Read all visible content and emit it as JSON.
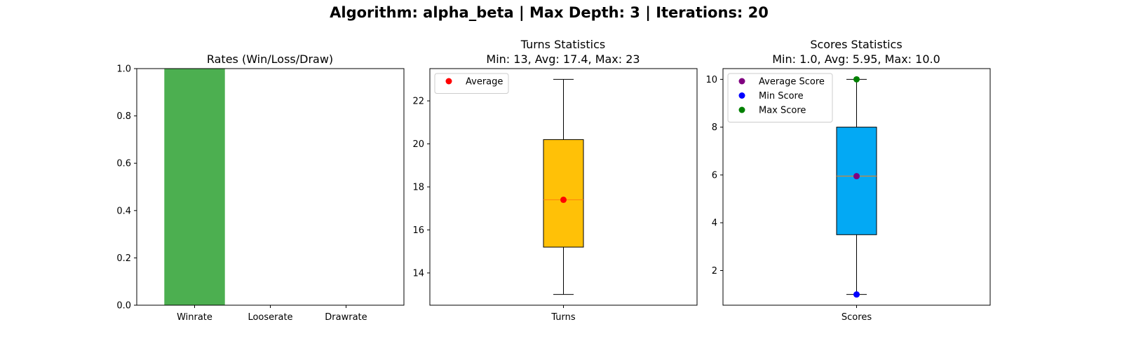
{
  "figure": {
    "suptitle": "Algorithm: alpha_beta | Max Depth: 3 | Iterations: 20"
  },
  "chart_data": [
    {
      "type": "bar",
      "title": "Rates (Win/Loss/Draw)",
      "categories": [
        "Winrate",
        "Looserate",
        "Drawrate"
      ],
      "values": [
        1.0,
        0.0,
        0.0
      ],
      "ylim": [
        0,
        1
      ],
      "yticks": [
        0.0,
        0.2,
        0.4,
        0.6,
        0.8,
        1.0
      ],
      "ytick_labels": [
        "0.0",
        "0.2",
        "0.4",
        "0.6",
        "0.8",
        "1.0"
      ],
      "colors": [
        "#4caf50",
        "#f44336",
        "#9e9e9e"
      ],
      "grid": false
    },
    {
      "type": "box",
      "title_lines": [
        "Turns Statistics",
        "Min: 13, Avg: 17.4, Max: 23"
      ],
      "categories": [
        "Turns"
      ],
      "box": {
        "whisker_low": 13,
        "q1": 15.2,
        "median": 17.4,
        "q3": 20.2,
        "whisker_high": 23
      },
      "box_color": "#ffc107",
      "median_color": "#ff7f0e",
      "points": [
        {
          "name": "Average",
          "value": 17.4,
          "color": "#ff0000"
        }
      ],
      "legend": {
        "entries": [
          "Average"
        ],
        "position": "upper-left"
      },
      "ylim": [
        12.5,
        23.5
      ],
      "yticks": [
        14,
        16,
        18,
        20,
        22
      ],
      "ytick_labels": [
        "14",
        "16",
        "18",
        "20",
        "22"
      ],
      "grid": false
    },
    {
      "type": "box",
      "title_lines": [
        "Scores Statistics",
        "Min: 1.0, Avg: 5.95, Max: 10.0"
      ],
      "categories": [
        "Scores"
      ],
      "box": {
        "whisker_low": 1.0,
        "q1": 3.5,
        "median": 5.95,
        "q3": 8.0,
        "whisker_high": 10.0
      },
      "box_color": "#03a9f4",
      "median_color": "#ff7f0e",
      "points": [
        {
          "name": "Average Score",
          "value": 5.95,
          "color": "#800080"
        },
        {
          "name": "Min Score",
          "value": 1.0,
          "color": "#0000ff"
        },
        {
          "name": "Max Score",
          "value": 10.0,
          "color": "#008000"
        }
      ],
      "legend": {
        "entries": [
          "Average Score",
          "Min Score",
          "Max Score"
        ],
        "position": "upper-left"
      },
      "ylim": [
        0.55,
        10.45
      ],
      "yticks": [
        2,
        4,
        6,
        8,
        10
      ],
      "ytick_labels": [
        "2",
        "4",
        "6",
        "8",
        "10"
      ],
      "grid": false
    }
  ]
}
